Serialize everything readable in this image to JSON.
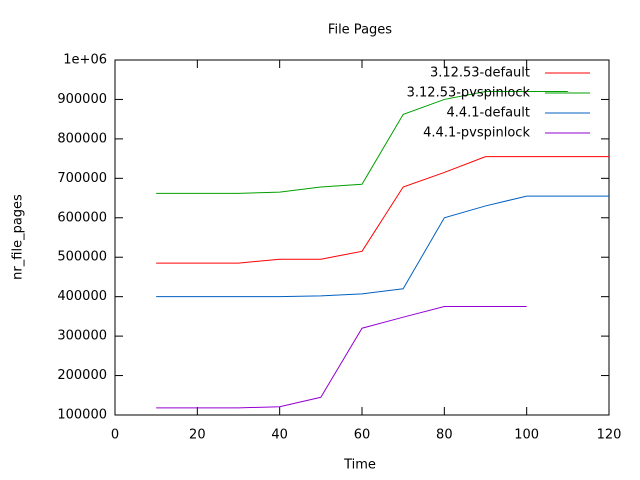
{
  "chart_data": {
    "type": "line",
    "title": "File Pages",
    "x_label": "Time",
    "y_label": "nr_file_pages",
    "x": [
      10,
      20,
      30,
      40,
      50,
      60,
      70,
      80,
      90,
      100,
      110,
      120
    ],
    "series": [
      {
        "name": "3.12.53-default",
        "color": "#ff0000",
        "values": [
          485000,
          485000,
          485000,
          495000,
          495000,
          515000,
          678000,
          715000,
          755000,
          755000,
          755000,
          755000
        ]
      },
      {
        "name": "3.12.53-pvspinlock",
        "color": "#00a000",
        "values": [
          662000,
          662000,
          662000,
          665000,
          678000,
          685000,
          862000,
          900000,
          920000,
          920000,
          920000,
          null
        ]
      },
      {
        "name": "4.4.1-default",
        "color": "#0060c0",
        "values": [
          400000,
          400000,
          400000,
          400000,
          402000,
          407000,
          420000,
          600000,
          630000,
          655000,
          655000,
          655000
        ]
      },
      {
        "name": "4.4.1-pvspinlock",
        "color": "#9400d3",
        "values": [
          118000,
          118000,
          118000,
          121000,
          145000,
          320000,
          348000,
          375000,
          375000,
          375000,
          null,
          null
        ]
      }
    ],
    "xlim": [
      0,
      120
    ],
    "xticks": [
      0,
      20,
      40,
      60,
      80,
      100,
      120
    ],
    "ylim": [
      100000,
      1000000
    ],
    "yticks": [
      100000,
      200000,
      300000,
      400000,
      500000,
      600000,
      700000,
      800000,
      900000,
      {
        "value": 1000000,
        "label": "1e+06"
      }
    ],
    "legend": "top-right"
  }
}
